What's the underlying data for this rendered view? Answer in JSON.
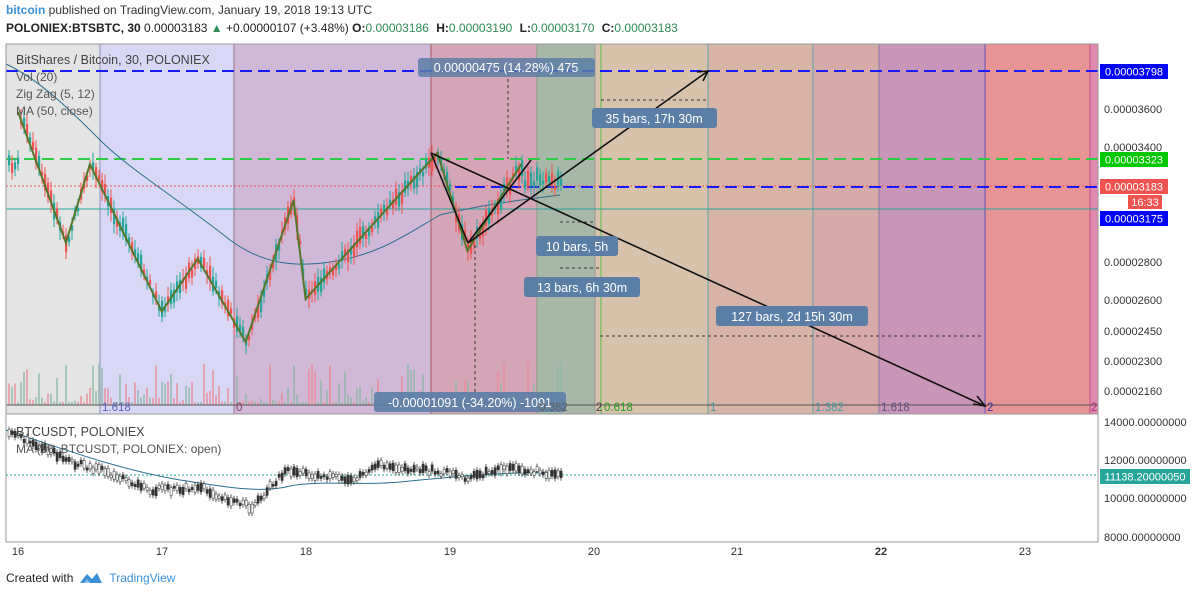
{
  "header": {
    "author": "bitcoin",
    "published": "published on TradingView.com, January 19, 2018 19:13 UTC",
    "symbol": "POLONIEX:BTSBTC, 30",
    "last": "0.00003183",
    "change_arrow": "▲",
    "change": "+0.00000107 (+3.48%)",
    "o_label": "O:",
    "o": "0.00003186",
    "h_label": "H:",
    "h": "0.00003190",
    "l_label": "L:",
    "l": "0.00003170",
    "c_label": "C:",
    "c": "0.00003183"
  },
  "main_legend": {
    "title": "BitShares / Bitcoin, 30, POLONIEX",
    "vol": "Vol (20)",
    "zigzag": "Zig Zag (5, 12)",
    "ma": "MA (50, close)"
  },
  "sub_legend": {
    "title": "BTCUSDT, POLONIEX",
    "ma": "MA (50, BTCUSDT, POLONIEX: open)"
  },
  "annotations": {
    "rise": "0.00000475 (14.28%) 475",
    "rise_bars": "35 bars, 17h 30m",
    "bars10": "10 bars, 5h",
    "bars13": "13 bars, 6h 30m",
    "bars127": "127 bars, 2d 15h 30m",
    "fall": "-0.00001091 (-34.20%) -1091"
  },
  "price_axis": {
    "ticks": [
      "0.00003600",
      "0.00003400",
      "0.00002800",
      "0.00002600",
      "0.00002450",
      "0.00002300",
      "0.00002160"
    ],
    "badges": [
      {
        "text": "0.00003798",
        "color": "#0000ff"
      },
      {
        "text": "0.00003323",
        "color": "#00c800"
      },
      {
        "text": "0.00003183",
        "color": "#ef5350"
      },
      {
        "text": "16:33",
        "color": "#ef5350"
      },
      {
        "text": "0.00003175",
        "color": "#0000ff"
      }
    ]
  },
  "sub_axis": {
    "ticks": [
      "14000.00000000",
      "12000.00000000",
      "10000.00000000",
      "8000.00000000"
    ],
    "badge": "11138.20000050"
  },
  "time_axis": [
    "16",
    "17",
    "18",
    "19",
    "20",
    "21",
    "22",
    "23"
  ],
  "fib_labels": [
    "1.618",
    "0",
    "0.382",
    "2",
    "0.618",
    "1",
    "1.382",
    "1.618",
    "2",
    "2"
  ],
  "colors": {
    "up": "#26a69a",
    "down": "#ef5350",
    "zigzag": "#55772a",
    "ma": "#2a6f8f",
    "badge_blue": "#5b7ea6",
    "accent": "#3b8fd6"
  },
  "footer": {
    "created": "Created with",
    "brand": "TradingView"
  },
  "chart_data": [
    {
      "type": "line",
      "title": "BitShares / Bitcoin, 30, POLONIEX",
      "x": [
        "16",
        "17",
        "18",
        "19",
        "20",
        "21",
        "22",
        "23"
      ],
      "series": [
        {
          "name": "Zig Zag (5, 12)",
          "points": [
            [
              "16 00:00",
              3.58e-05
            ],
            [
              "16 08:00",
              2.96e-05
            ],
            [
              "16 12:00",
              3.31e-05
            ],
            [
              "17 00:00",
              2.54e-05
            ],
            [
              "17 06:00",
              2.82e-05
            ],
            [
              "17 14:00",
              2.39e-05
            ],
            [
              "17 22:00",
              3.22e-05
            ],
            [
              "18 00:00",
              2.6e-05
            ],
            [
              "18 22:00",
              3.36e-05
            ],
            [
              "19 03:00",
              2.89e-05
            ],
            [
              "19 12:00",
              3.31e-05
            ]
          ]
        }
      ],
      "ylim": [
        2.08e-05,
        3.98e-05
      ]
    },
    {
      "type": "line",
      "title": "BTCUSDT, POLONIEX",
      "series": [
        {
          "name": "MA (50, BTCUSDT, POLONIEX: open)"
        }
      ],
      "ylim": [
        7500,
        14500
      ]
    }
  ]
}
